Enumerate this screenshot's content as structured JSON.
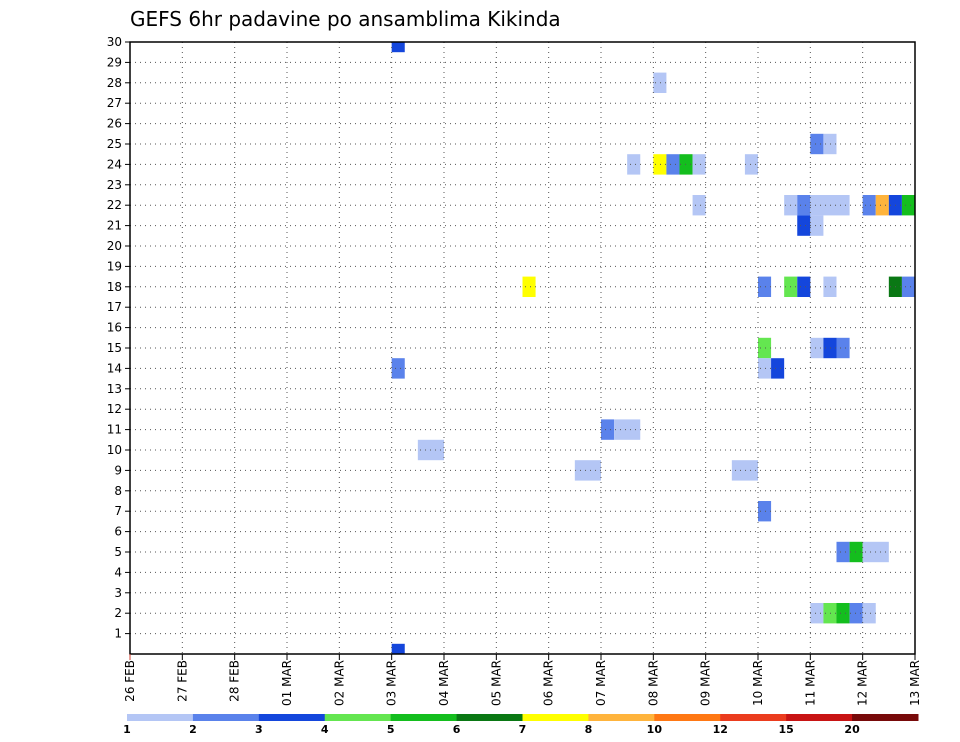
{
  "chart_data": {
    "type": "heatmap",
    "title": "GEFS 6hr padavine po ansamblima Kikinda",
    "xlabel": "",
    "ylabel": "",
    "x_ticks": [
      "26 FEB",
      "27 FEB",
      "28 FEB",
      "01 MAR",
      "02 MAR",
      "03 MAR",
      "04 MAR",
      "05 MAR",
      "06 MAR",
      "07 MAR",
      "08 MAR",
      "09 MAR",
      "10 MAR",
      "11 MAR",
      "12 MAR",
      "13 MAR"
    ],
    "y_ticks": [
      1,
      2,
      3,
      4,
      5,
      6,
      7,
      8,
      9,
      10,
      11,
      12,
      13,
      14,
      15,
      16,
      17,
      18,
      19,
      20,
      21,
      22,
      23,
      24,
      25,
      26,
      27,
      28,
      29,
      30
    ],
    "xlim": [
      0,
      15
    ],
    "ylim": [
      0,
      30
    ],
    "grid": true,
    "colorbar": {
      "labels": [
        "1",
        "2",
        "3",
        "4",
        "5",
        "6",
        "7",
        "8",
        "10",
        "12",
        "15",
        "20"
      ],
      "colors": [
        "#b4c6f5",
        "#5a82eb",
        "#1446dc",
        "#64e650",
        "#14be1e",
        "#0a7814",
        "#ffff00",
        "#ffb43c",
        "#ff7814",
        "#eb3c1e",
        "#c81414",
        "#780a0a"
      ]
    },
    "cells": [
      {
        "member": 30,
        "day": 5.0,
        "days": 0.25,
        "color": "#1446dc"
      },
      {
        "member": 0,
        "day": 5.0,
        "days": 0.25,
        "color": "#1446dc"
      },
      {
        "member": 14,
        "day": 5.0,
        "days": 0.25,
        "color": "#5a82eb"
      },
      {
        "member": 10,
        "day": 5.5,
        "days": 0.5,
        "color": "#b4c6f5"
      },
      {
        "member": 18,
        "day": 7.5,
        "days": 0.25,
        "color": "#ffff00"
      },
      {
        "member": 9,
        "day": 8.5,
        "days": 0.5,
        "color": "#b4c6f5"
      },
      {
        "member": 11,
        "day": 9.0,
        "days": 0.25,
        "color": "#5a82eb"
      },
      {
        "member": 11,
        "day": 9.25,
        "days": 0.5,
        "color": "#b4c6f5"
      },
      {
        "member": 28,
        "day": 10.0,
        "days": 0.25,
        "color": "#b4c6f5"
      },
      {
        "member": 24,
        "day": 9.5,
        "days": 0.25,
        "color": "#b4c6f5"
      },
      {
        "member": 24,
        "day": 10.0,
        "days": 0.25,
        "color": "#ffff00"
      },
      {
        "member": 24,
        "day": 10.25,
        "days": 0.25,
        "color": "#5a82eb"
      },
      {
        "member": 24,
        "day": 10.5,
        "days": 0.25,
        "color": "#14be1e"
      },
      {
        "member": 24,
        "day": 10.75,
        "days": 0.25,
        "color": "#b4c6f5"
      },
      {
        "member": 24,
        "day": 11.75,
        "days": 0.25,
        "color": "#b4c6f5"
      },
      {
        "member": 22,
        "day": 10.75,
        "days": 0.25,
        "color": "#b4c6f5"
      },
      {
        "member": 9,
        "day": 11.5,
        "days": 0.5,
        "color": "#b4c6f5"
      },
      {
        "member": 25,
        "day": 13.0,
        "days": 0.25,
        "color": "#5a82eb"
      },
      {
        "member": 25,
        "day": 13.25,
        "days": 0.25,
        "color": "#b4c6f5"
      },
      {
        "member": 22,
        "day": 12.5,
        "days": 0.25,
        "color": "#b4c6f5"
      },
      {
        "member": 22,
        "day": 12.75,
        "days": 0.25,
        "color": "#5a82eb"
      },
      {
        "member": 22,
        "day": 13.0,
        "days": 0.75,
        "color": "#b4c6f5"
      },
      {
        "member": 22,
        "day": 14.0,
        "days": 0.25,
        "color": "#5a82eb"
      },
      {
        "member": 22,
        "day": 14.25,
        "days": 0.25,
        "color": "#ffb43c"
      },
      {
        "member": 22,
        "day": 14.5,
        "days": 0.25,
        "color": "#1446dc"
      },
      {
        "member": 22,
        "day": 14.75,
        "days": 0.25,
        "color": "#14be1e"
      },
      {
        "member": 21,
        "day": 12.75,
        "days": 0.25,
        "color": "#1446dc"
      },
      {
        "member": 21,
        "day": 13.0,
        "days": 0.25,
        "color": "#b4c6f5"
      },
      {
        "member": 18,
        "day": 12.0,
        "days": 0.25,
        "color": "#5a82eb"
      },
      {
        "member": 18,
        "day": 12.5,
        "days": 0.25,
        "color": "#64e650"
      },
      {
        "member": 18,
        "day": 12.75,
        "days": 0.25,
        "color": "#1446dc"
      },
      {
        "member": 18,
        "day": 13.25,
        "days": 0.25,
        "color": "#b4c6f5"
      },
      {
        "member": 18,
        "day": 14.5,
        "days": 0.25,
        "color": "#0a7814"
      },
      {
        "member": 18,
        "day": 14.75,
        "days": 0.25,
        "color": "#5a82eb"
      },
      {
        "member": 15,
        "day": 12.0,
        "days": 0.25,
        "color": "#64e650"
      },
      {
        "member": 15,
        "day": 13.0,
        "days": 0.25,
        "color": "#b4c6f5"
      },
      {
        "member": 15,
        "day": 13.25,
        "days": 0.25,
        "color": "#1446dc"
      },
      {
        "member": 15,
        "day": 13.5,
        "days": 0.25,
        "color": "#5a82eb"
      },
      {
        "member": 14,
        "day": 12.0,
        "days": 0.25,
        "color": "#b4c6f5"
      },
      {
        "member": 14,
        "day": 12.25,
        "days": 0.25,
        "color": "#1446dc"
      },
      {
        "member": 7,
        "day": 12.0,
        "days": 0.25,
        "color": "#5a82eb"
      },
      {
        "member": 5,
        "day": 13.5,
        "days": 0.25,
        "color": "#5a82eb"
      },
      {
        "member": 5,
        "day": 13.75,
        "days": 0.25,
        "color": "#14be1e"
      },
      {
        "member": 5,
        "day": 14.0,
        "days": 0.5,
        "color": "#b4c6f5"
      },
      {
        "member": 2,
        "day": 13.0,
        "days": 0.25,
        "color": "#b4c6f5"
      },
      {
        "member": 2,
        "day": 13.25,
        "days": 0.25,
        "color": "#64e650"
      },
      {
        "member": 2,
        "day": 13.5,
        "days": 0.25,
        "color": "#14be1e"
      },
      {
        "member": 2,
        "day": 13.75,
        "days": 0.25,
        "color": "#5a82eb"
      },
      {
        "member": 2,
        "day": 14.0,
        "days": 0.25,
        "color": "#b4c6f5"
      }
    ]
  }
}
